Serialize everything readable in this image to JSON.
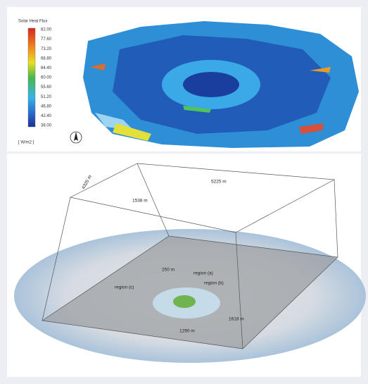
{
  "legend": {
    "title": "Solar Heat Flux",
    "values": [
      "82.00",
      "77.60",
      "73.20",
      "68.80",
      "64.40",
      "60.00",
      "55.60",
      "51.20",
      "46.80",
      "42.40",
      "38.00"
    ],
    "unit": "[ W/m2 ]"
  },
  "domain": {
    "width": "5225 m",
    "depth": "4325 m",
    "height": "1538 m",
    "inner": "250 m",
    "region_a": "region (a)",
    "region_b": "region (b)",
    "region_c": "region (c)",
    "length_b": "1618 m",
    "length_c": "1290 m"
  }
}
